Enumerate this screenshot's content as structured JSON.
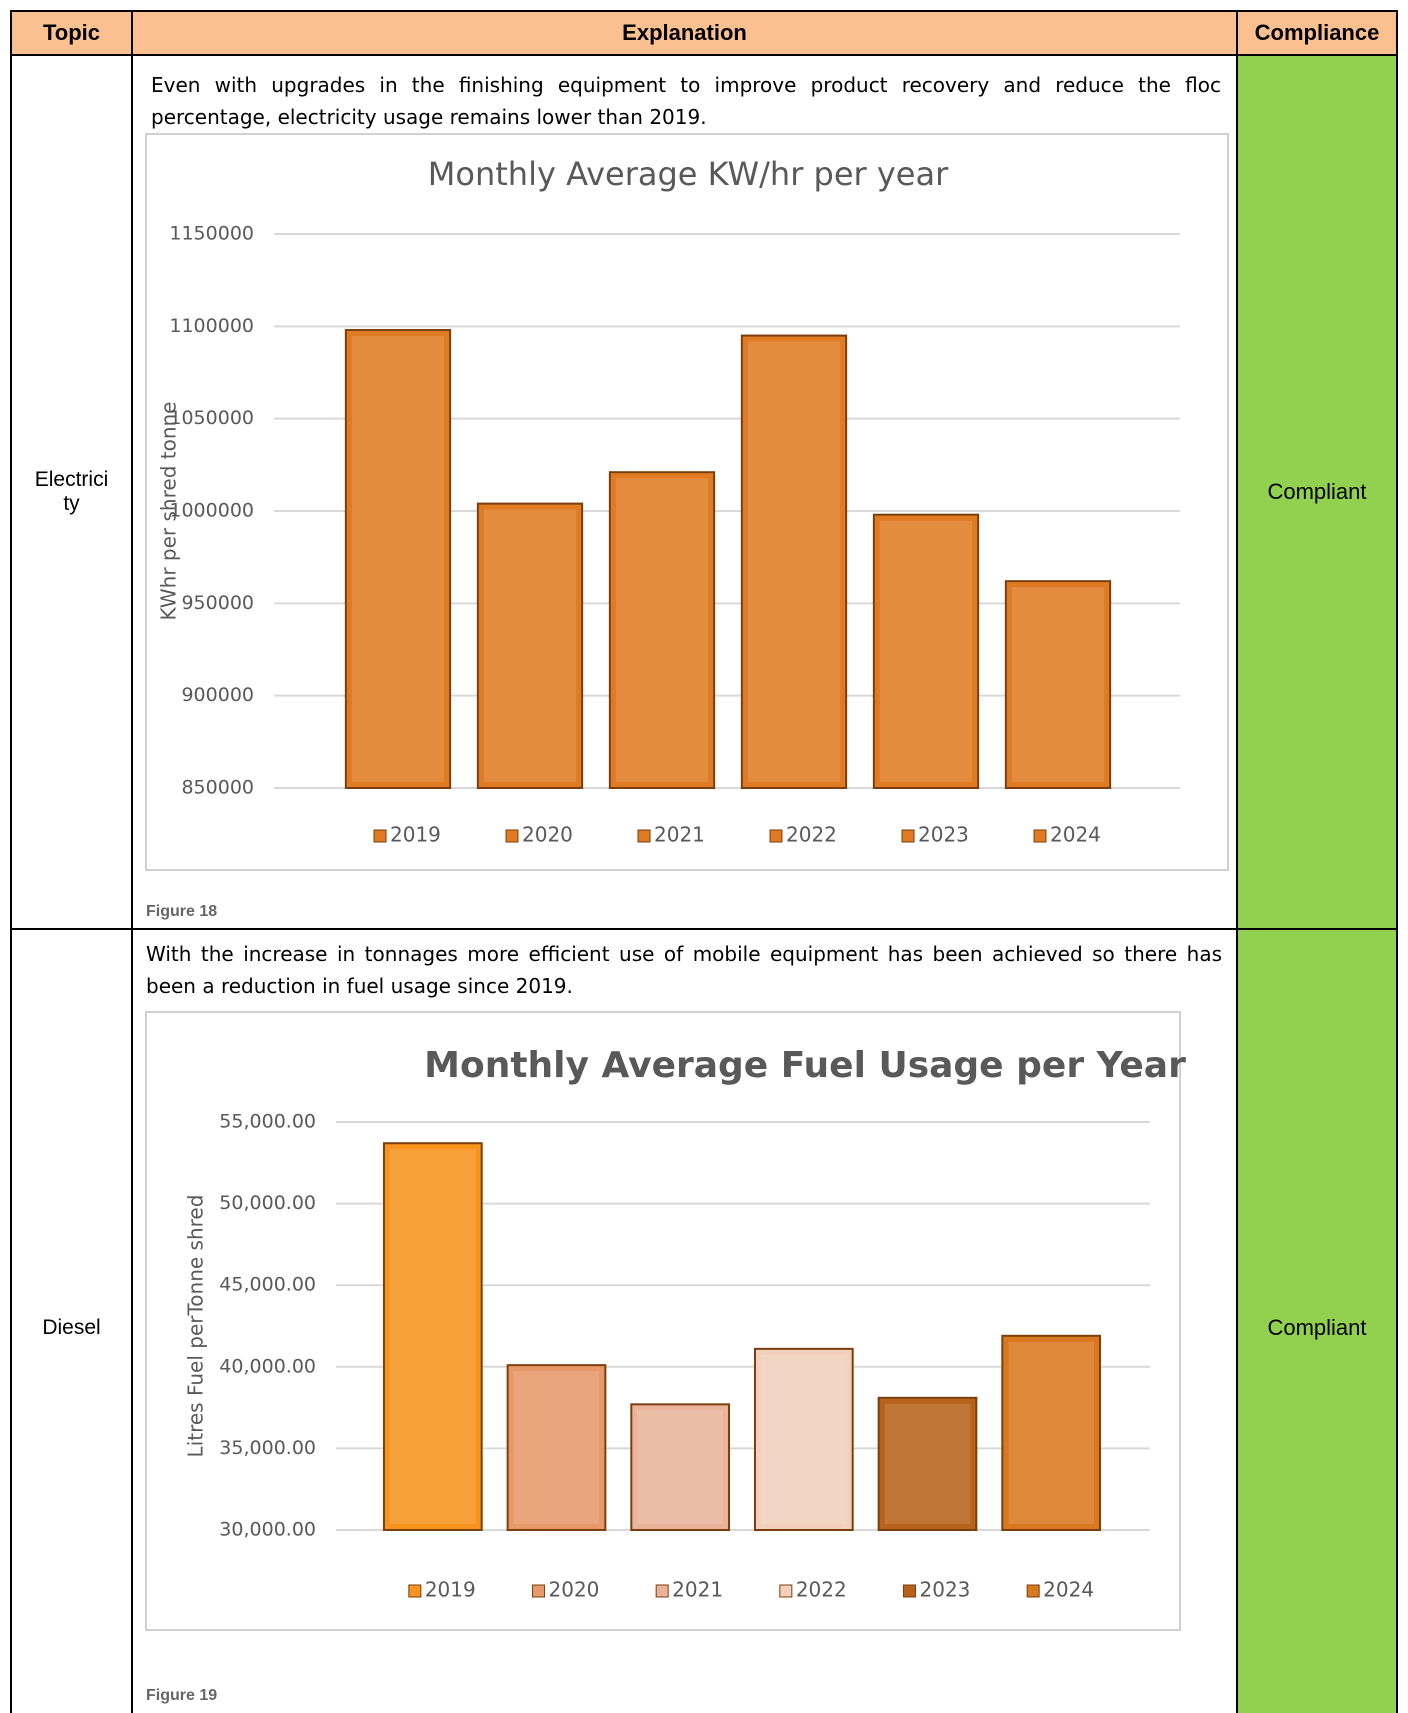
{
  "table": {
    "headers": [
      "Topic",
      "Explanation",
      "Compliance"
    ],
    "rows": [
      {
        "topic": "Electricity",
        "text": "Even with upgrades in the finishing equipment to improve product recovery and reduce the floc percentage, electricity usage remains lower than 2019.",
        "chart": {
          "type": "bar",
          "title": "Monthly Average KW/hr per year",
          "y_label": "KWhr per shred tonne",
          "categories": [
            "2019",
            "2020",
            "2021",
            "2022",
            "2023",
            "2024"
          ],
          "values": [
            1098000,
            1004000,
            1021000,
            1095000,
            998000,
            962000
          ],
          "colors": [
            "#e07b24",
            "#e07b24",
            "#e07b24",
            "#e07b24",
            "#e07b24",
            "#e07b24"
          ],
          "ylim": [
            850000,
            1150000
          ],
          "yticks": [
            850000,
            900000,
            950000,
            1000000,
            1050000,
            1100000,
            1150000
          ],
          "grid": true,
          "legend": "bottom"
        },
        "figure": "Figure 18",
        "compliance": "Compliant"
      },
      {
        "topic": "Diesel",
        "text": "With the increase in tonnages more efficient use of mobile equipment has been achieved so there has been a reduction in fuel usage since 2019.",
        "chart": {
          "type": "bar",
          "title": "Monthly Average Fuel Usage per Year",
          "y_label": "Litres Fuel perTonne shred",
          "categories": [
            "2019",
            "2020",
            "2021",
            "2022",
            "2023",
            "2024"
          ],
          "values": [
            53700,
            40100,
            37700,
            41100,
            38100,
            41900
          ],
          "colors": [
            "#f7931e",
            "#e8996a",
            "#eab49a",
            "#f2d0bd",
            "#b9621c",
            "#d9781f"
          ],
          "ylim": [
            30000,
            55000
          ],
          "yticks": [
            {
              "value": 30000,
              "label": "30,000.00"
            },
            {
              "value": 35000,
              "label": "35,000.00"
            },
            {
              "value": 40000,
              "label": "40,000.00"
            },
            {
              "value": 45000,
              "label": "45,000.00"
            },
            {
              "value": 50000,
              "label": "50,000.00"
            },
            {
              "value": 55000,
              "label": "55,000.00"
            }
          ],
          "grid": true,
          "legend": "bottom"
        },
        "figure": "Figure 19",
        "compliance": "Compliant"
      }
    ]
  }
}
